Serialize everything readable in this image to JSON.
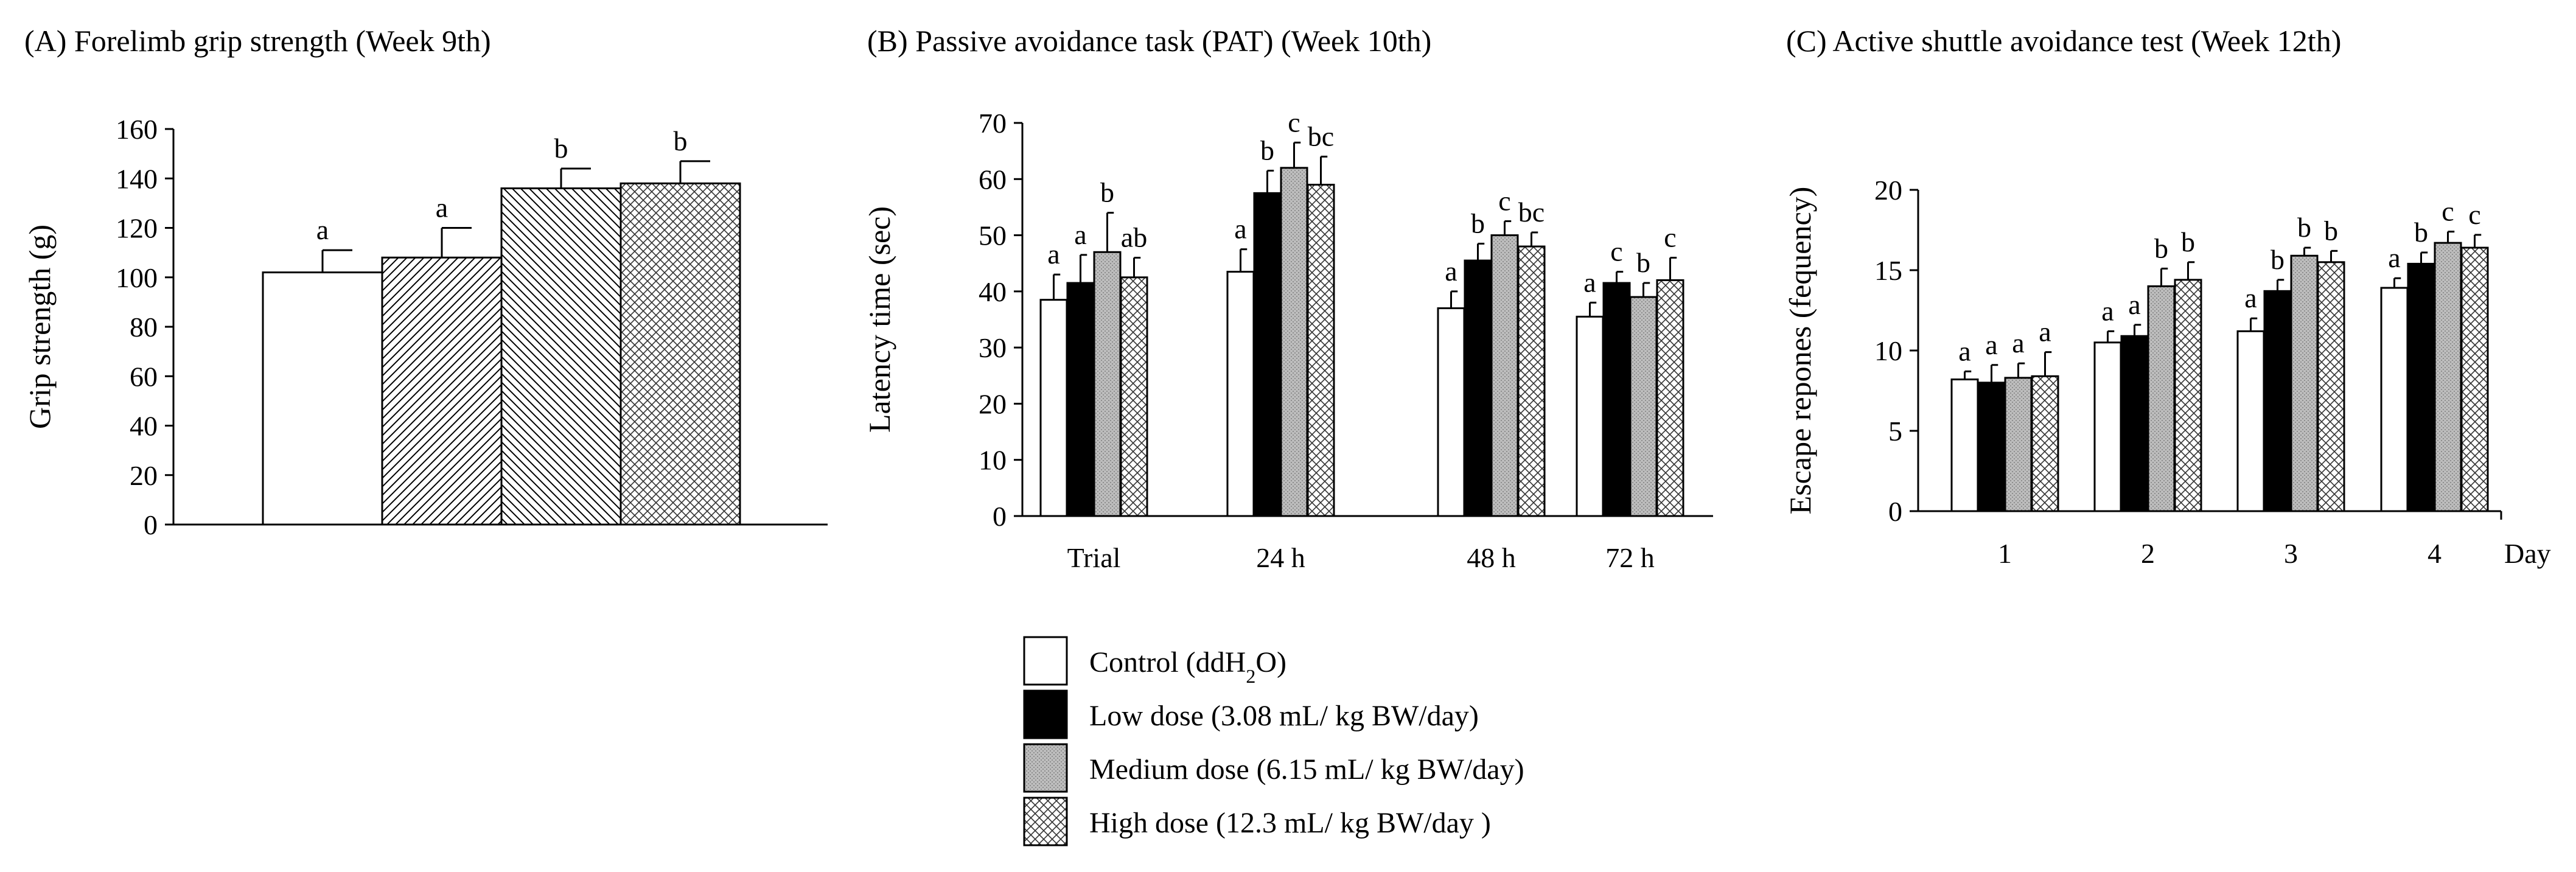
{
  "legend": {
    "entries": [
      {
        "key": "control",
        "pre": "Control (ddH",
        "sub": "2",
        "post": "O)",
        "label": "Control (ddH2O)",
        "pattern": "white"
      },
      {
        "key": "low",
        "pre": "Low dose (3.08 mL/ kg BW/day)",
        "sub": "",
        "post": "",
        "label": "Low dose (3.08 mL/ kg BW/day)",
        "pattern": "black"
      },
      {
        "key": "medium",
        "pre": "Medium dose (6.15 mL/ kg BW/day)",
        "sub": "",
        "post": "",
        "label": "Medium dose (6.15 mL/ kg BW/day)",
        "pattern": "gray-dots"
      },
      {
        "key": "high",
        "pre": "High dose (12.3 mL/ kg BW/day )",
        "sub": "",
        "post": "",
        "label": "High dose (12.3 mL/ kg BW/day )",
        "pattern": "crosshatch"
      }
    ]
  },
  "chart_data": [
    {
      "id": "A",
      "type": "bar",
      "title": "(A) Forelimb grip strength (Week 9th)",
      "xlabel": "",
      "ylabel": "Grip strength (g)",
      "ylim": [
        0,
        160
      ],
      "yticks": [
        0,
        20,
        40,
        60,
        80,
        100,
        120,
        140,
        160
      ],
      "categories": [
        ""
      ],
      "series": [
        {
          "name": "Control (ddH2O)",
          "pattern": "white",
          "values": [
            102
          ],
          "errors": [
            9
          ],
          "labels": [
            "a"
          ]
        },
        {
          "name": "Low dose (3.08 mL/ kg BW/day)",
          "pattern": "diag",
          "values": [
            108
          ],
          "errors": [
            12
          ],
          "labels": [
            "a"
          ]
        },
        {
          "name": "Medium dose (6.15 mL/ kg BW/day)",
          "pattern": "diag-back",
          "values": [
            136
          ],
          "errors": [
            8
          ],
          "labels": [
            "b"
          ]
        },
        {
          "name": "High dose (12.3 mL/ kg BW/day )",
          "pattern": "crosshatch",
          "values": [
            138
          ],
          "errors": [
            9
          ],
          "labels": [
            "b"
          ]
        }
      ]
    },
    {
      "id": "B",
      "type": "bar",
      "title": "(B) Passive avoidance task (PAT) (Week 10th)",
      "xlabel": "",
      "ylabel": "Latency time (sec)",
      "ylim": [
        0,
        70
      ],
      "yticks": [
        0,
        10,
        20,
        30,
        40,
        50,
        60,
        70
      ],
      "categories": [
        "Trial",
        "24 h",
        "48 h",
        "72 h"
      ],
      "series": [
        {
          "name": "Control (ddH2O)",
          "pattern": "white",
          "values": [
            38.5,
            43.5,
            37.0,
            35.5
          ],
          "errors": [
            4.5,
            4,
            3,
            2.5
          ],
          "labels": [
            "a",
            "a",
            "a",
            "a"
          ]
        },
        {
          "name": "Low dose (3.08 mL/ kg BW/day)",
          "pattern": "black",
          "values": [
            41.5,
            57.5,
            45.5,
            41.5
          ],
          "errors": [
            5,
            4,
            3,
            2
          ],
          "labels": [
            "a",
            "b",
            "b",
            "c"
          ]
        },
        {
          "name": "Medium dose (6.15 mL/ kg BW/day)",
          "pattern": "gray-dots",
          "values": [
            47.0,
            62.0,
            50.0,
            39.0
          ],
          "errors": [
            7,
            4.5,
            2.5,
            2.5
          ],
          "labels": [
            "b",
            "c",
            "c",
            "b"
          ]
        },
        {
          "name": "High dose (12.3 mL/ kg BW/day )",
          "pattern": "crosshatch",
          "values": [
            42.5,
            59.0,
            48.0,
            42.0
          ],
          "errors": [
            3.5,
            5,
            2.5,
            4
          ],
          "labels": [
            "ab",
            "bc",
            "bc",
            "c"
          ]
        }
      ]
    },
    {
      "id": "C",
      "type": "bar",
      "title": "(C) Active shuttle avoidance test (Week 12th)",
      "xlabel": "Day",
      "ylabel": "Escape repones (fequency)",
      "ylim": [
        0,
        20
      ],
      "yticks": [
        0,
        5,
        10,
        15,
        20
      ],
      "categories": [
        "1",
        "2",
        "3",
        "4"
      ],
      "series": [
        {
          "name": "Control (ddH2O)",
          "pattern": "white",
          "values": [
            8.2,
            10.5,
            11.2,
            13.9
          ],
          "errors": [
            0.5,
            0.7,
            0.8,
            0.6
          ],
          "labels": [
            "a",
            "a",
            "a",
            "a"
          ]
        },
        {
          "name": "Low dose (3.08 mL/ kg BW/day)",
          "pattern": "black",
          "values": [
            8.0,
            10.9,
            13.7,
            15.4
          ],
          "errors": [
            1.1,
            0.7,
            0.7,
            0.7
          ],
          "labels": [
            "a",
            "a",
            "b",
            "b"
          ]
        },
        {
          "name": "Medium dose (6.15 mL/ kg BW/day)",
          "pattern": "gray-dots",
          "values": [
            8.3,
            14.0,
            15.9,
            16.7
          ],
          "errors": [
            0.9,
            1.1,
            0.5,
            0.7
          ],
          "labels": [
            "a",
            "b",
            "b",
            "c"
          ]
        },
        {
          "name": "High dose (12.3 mL/ kg BW/day )",
          "pattern": "crosshatch",
          "values": [
            8.4,
            14.4,
            15.5,
            16.4
          ],
          "errors": [
            1.5,
            1.1,
            0.7,
            0.8
          ],
          "labels": [
            "a",
            "b",
            "b",
            "c"
          ]
        }
      ]
    }
  ]
}
